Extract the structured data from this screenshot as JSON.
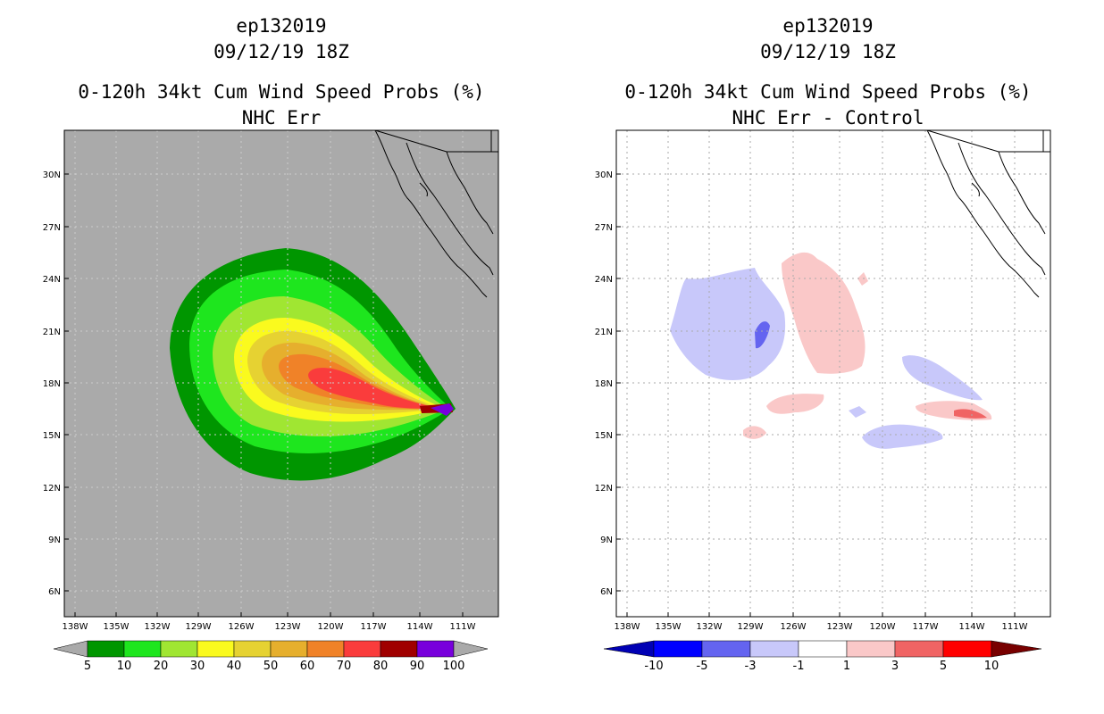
{
  "left": {
    "storm_id": "ep132019",
    "datetime": "09/12/19 18Z",
    "title": "0-120h 34kt Cum Wind Speed Probs (%)",
    "subtitle": "NHC Err",
    "background_color": "#aaaaaa",
    "colorbar": {
      "labels": [
        "5",
        "10",
        "20",
        "30",
        "40",
        "50",
        "60",
        "70",
        "80",
        "90",
        "100"
      ],
      "colors": [
        "#009600",
        "#1ee61e",
        "#a0e632",
        "#fafa1e",
        "#e6d232",
        "#e6af2d",
        "#f08228",
        "#fa3c3c",
        "#a00000",
        "#7800dc"
      ],
      "end_color": "#aaaaaa"
    }
  },
  "right": {
    "storm_id": "ep132019",
    "datetime": "09/12/19 18Z",
    "title": "0-120h 34kt Cum Wind Speed Probs (%)",
    "subtitle": "NHC Err - Control",
    "background_color": "#ffffff",
    "colorbar": {
      "labels": [
        "-10",
        "-5",
        "-3",
        "-1",
        "1",
        "3",
        "5",
        "10"
      ],
      "colors": [
        "#0000ff",
        "#6464f0",
        "#c8c8fa",
        "#ffffff",
        "#fac8c8",
        "#f06464",
        "#ff0000"
      ],
      "left_end_color": "#0000b4",
      "right_end_color": "#780000"
    }
  },
  "axes": {
    "lat_labels": [
      "30N",
      "27N",
      "24N",
      "21N",
      "18N",
      "15N",
      "12N",
      "9N",
      "6N"
    ],
    "lon_labels": [
      "138W",
      "135W",
      "132W",
      "129W",
      "126W",
      "123W",
      "120W",
      "117W",
      "114W",
      "111W"
    ]
  }
}
